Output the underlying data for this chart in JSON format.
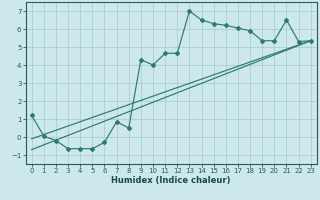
{
  "xlabel": "Humidex (Indice chaleur)",
  "bg_color": "#cce8ec",
  "grid_color": "#aacdd4",
  "line_color": "#2d7a6e",
  "xlim": [
    -0.5,
    23.5
  ],
  "ylim": [
    -1.5,
    7.5
  ],
  "xticks": [
    0,
    1,
    2,
    3,
    4,
    5,
    6,
    7,
    8,
    9,
    10,
    11,
    12,
    13,
    14,
    15,
    16,
    17,
    18,
    19,
    20,
    21,
    22,
    23
  ],
  "yticks": [
    -1,
    0,
    1,
    2,
    3,
    4,
    5,
    6,
    7
  ],
  "main_x": [
    0,
    1,
    2,
    3,
    4,
    5,
    6,
    7,
    8,
    9,
    10,
    11,
    12,
    13,
    14,
    15,
    16,
    17,
    18,
    19,
    20,
    21,
    22,
    23
  ],
  "main_y": [
    1.2,
    0.05,
    -0.2,
    -0.65,
    -0.65,
    -0.65,
    -0.3,
    0.85,
    0.5,
    4.3,
    4.0,
    4.65,
    4.65,
    7.0,
    6.5,
    6.3,
    6.2,
    6.05,
    5.9,
    5.35,
    5.35,
    6.5,
    5.3,
    5.35
  ],
  "line1_x": [
    0,
    23
  ],
  "line1_y": [
    -0.1,
    5.35
  ],
  "line2_x": [
    0,
    23
  ],
  "line2_y": [
    -0.7,
    5.35
  ]
}
